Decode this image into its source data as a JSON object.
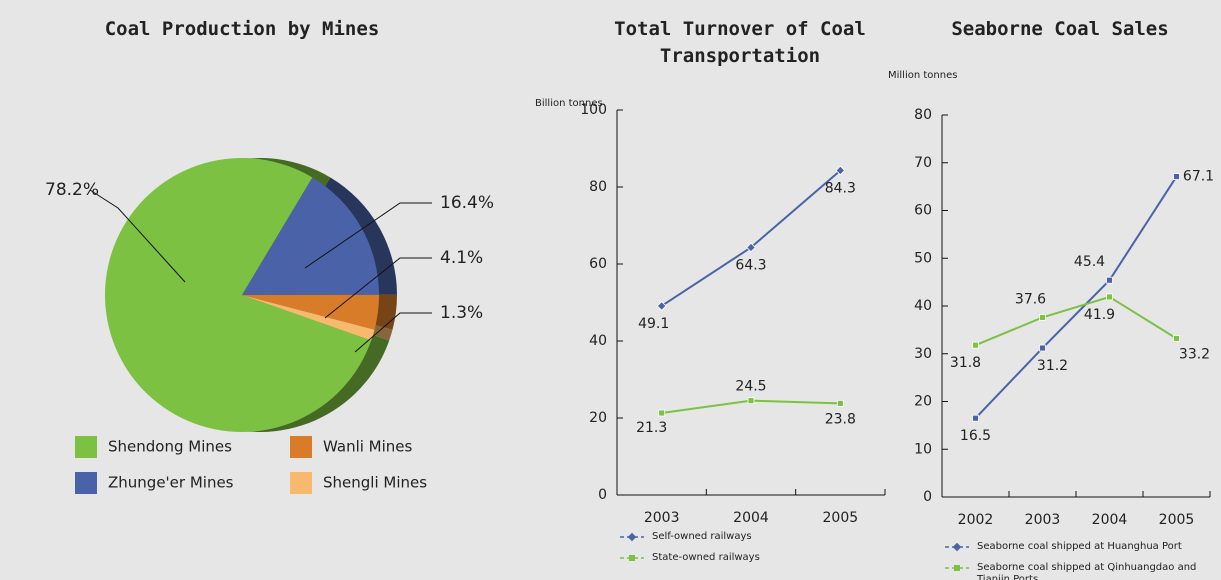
{
  "chart_data": [
    {
      "type": "pie",
      "title": "Coal Production by Mines",
      "categories": [
        "Shendong Mines",
        "Zhunge'er Mines",
        "Wanli Mines",
        "Shengli Mines"
      ],
      "values": [
        78.2,
        16.4,
        4.1,
        1.3
      ],
      "value_labels": [
        "78.2%",
        "16.4%",
        "4.1%",
        "1.3%"
      ],
      "colors": [
        "#7dc142",
        "#4a63a8",
        "#d97c2a",
        "#f7b96e"
      ]
    },
    {
      "type": "line",
      "title": "Total Turnover of Coal Transportation",
      "y_label": "Billion tonnes",
      "categories": [
        "2003",
        "2004",
        "2005"
      ],
      "series": [
        {
          "name": "Self-owned railways",
          "color": "#4a63a8",
          "values": [
            49.1,
            64.3,
            84.3
          ]
        },
        {
          "name": "State-owned railways",
          "color": "#7dc142",
          "values": [
            21.3,
            24.5,
            23.8
          ]
        }
      ],
      "ylim": [
        0,
        100
      ],
      "yticks": [
        0,
        20,
        40,
        60,
        80,
        100
      ]
    },
    {
      "type": "line",
      "title": "Seaborne Coal Sales",
      "y_label": "Million tonnes",
      "categories": [
        "2002",
        "2003",
        "2004",
        "2005"
      ],
      "series": [
        {
          "name": "Seaborne coal shipped at Huanghua Port",
          "color": "#4a63a8",
          "values": [
            16.5,
            31.2,
            45.4,
            67.1
          ]
        },
        {
          "name": "Seaborne coal shipped at Qinhuangdao and Tianjin Ports",
          "color": "#7dc142",
          "values": [
            31.8,
            37.6,
            41.9,
            33.2
          ]
        }
      ],
      "ylim": [
        0,
        80
      ],
      "yticks": [
        0,
        10,
        20,
        30,
        40,
        50,
        60,
        70,
        80
      ]
    }
  ]
}
